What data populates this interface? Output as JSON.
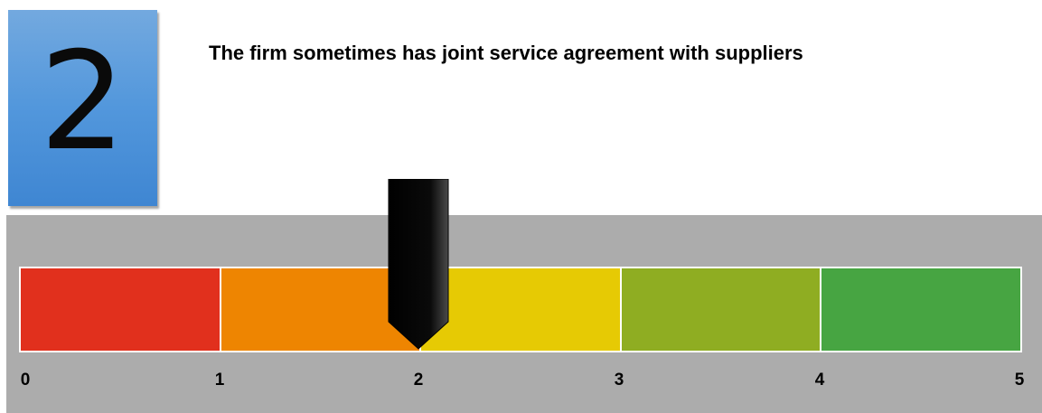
{
  "score": {
    "value": "2",
    "box_color": "#5297dc"
  },
  "statement": "The firm sometimes has joint service agreement with suppliers",
  "gauge": {
    "min": 0,
    "max": 5,
    "pointer_value": 2,
    "ticks": [
      "0",
      "1",
      "2",
      "3",
      "4",
      "5"
    ],
    "segment_colors": [
      "#e1301d",
      "#ee8501",
      "#e6ca04",
      "#8fad22",
      "#47a542"
    ],
    "panel_color": "#acacac",
    "pointer_color": "#000000"
  }
}
